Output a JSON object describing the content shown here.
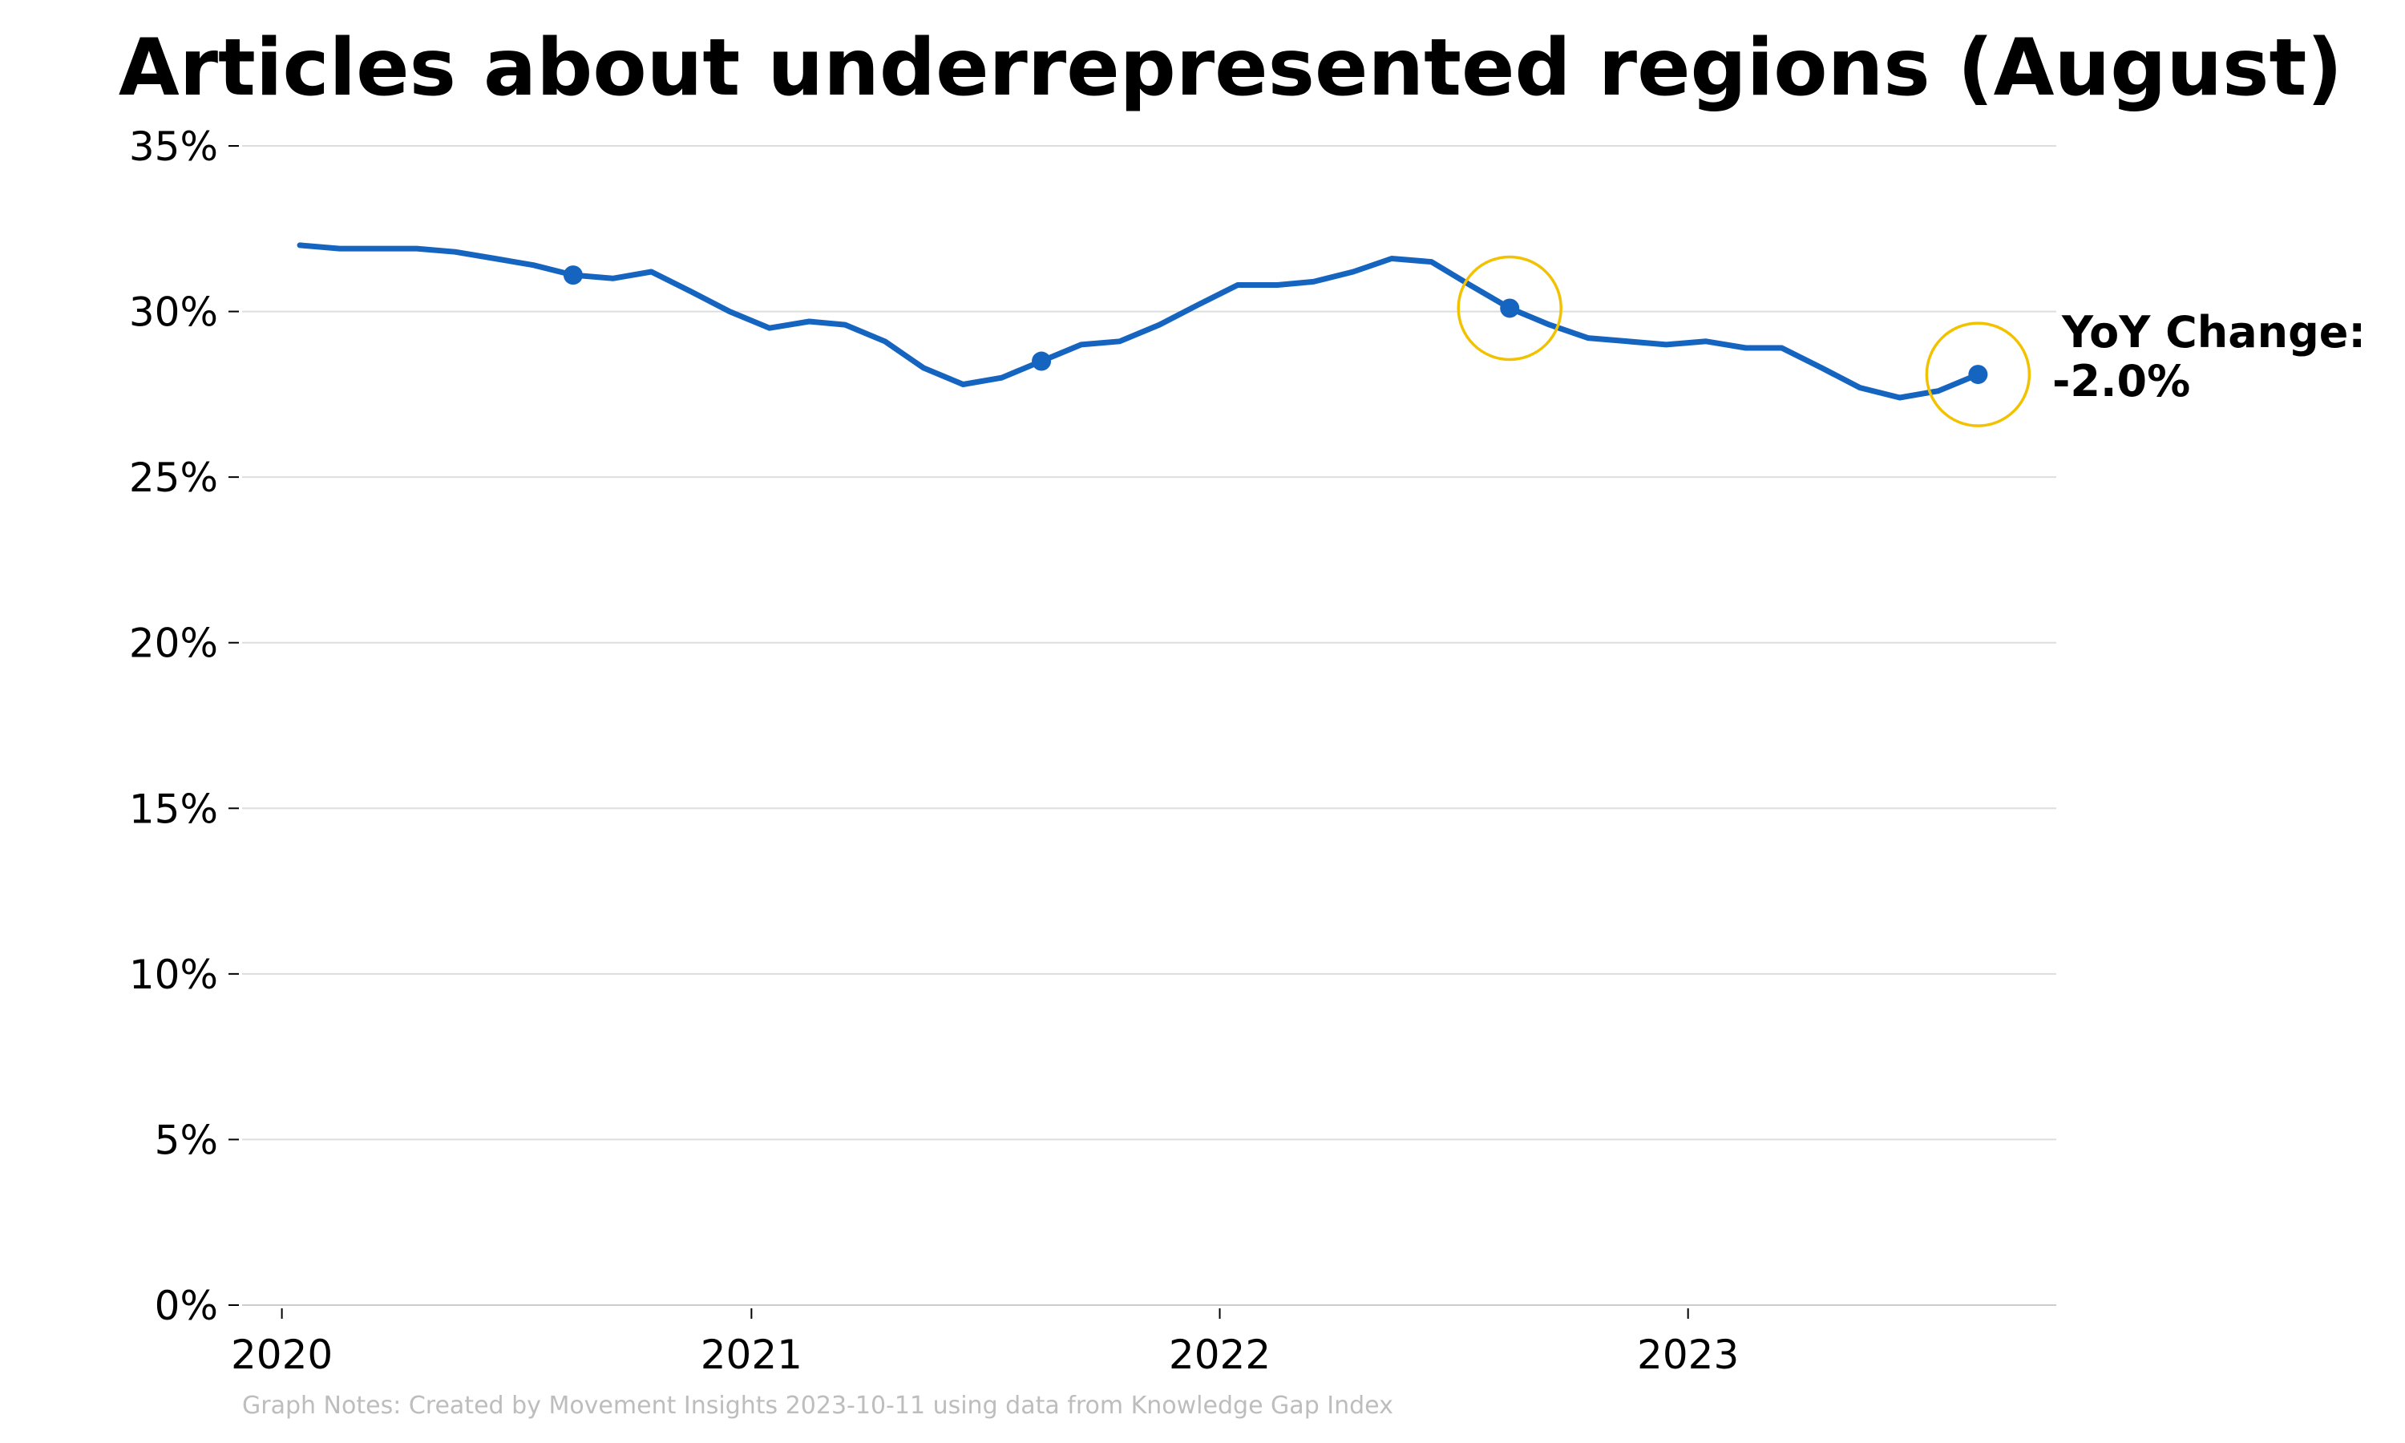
{
  "title": "Articles about underrepresented regions (August)",
  "note": "Graph Notes: Created by Movement Insights 2023-10-11 using data from Knowledge Gap Index",
  "annotation": {
    "line1": "YoY Change:",
    "line2": "-2.0%"
  },
  "colors": {
    "line": "#1565c0",
    "highlight": "#f2c200",
    "grid": "#dddddd",
    "axis": "#cccccc",
    "note": "#bdbdbd"
  },
  "chart_data": {
    "type": "line",
    "title": "Articles about underrepresented regions (August)",
    "xlabel": "",
    "ylabel": "",
    "ylim": [
      0,
      0.35
    ],
    "xlim": [
      "2019-12-01",
      "2023-10-15"
    ],
    "grid": true,
    "legend": "none",
    "y_ticks": [
      0,
      0.05,
      0.1,
      0.15,
      0.2,
      0.25,
      0.3,
      0.35
    ],
    "y_tick_labels": [
      "0%",
      "5%",
      "10%",
      "15%",
      "20%",
      "25%",
      "30%",
      "35%"
    ],
    "x_ticks": [
      "2020-01-01",
      "2021-01-01",
      "2022-01-01",
      "2023-01-01"
    ],
    "x_tick_labels": [
      "2020",
      "2021",
      "2022",
      "2023"
    ],
    "series": [
      {
        "x": [
          "2020-01",
          "2020-02",
          "2020-03",
          "2020-04",
          "2020-05",
          "2020-06",
          "2020-07",
          "2020-08",
          "2020-09",
          "2020-10",
          "2020-11",
          "2020-12",
          "2021-01",
          "2021-02",
          "2021-03",
          "2021-04",
          "2021-05",
          "2021-06",
          "2021-07",
          "2021-08",
          "2021-09",
          "2021-10",
          "2021-11",
          "2021-12",
          "2022-01",
          "2022-02",
          "2022-03",
          "2022-04",
          "2022-05",
          "2022-06",
          "2022-07",
          "2022-08",
          "2022-09",
          "2022-10",
          "2022-11",
          "2022-12",
          "2023-01",
          "2023-02",
          "2023-03",
          "2023-04",
          "2023-05",
          "2023-06",
          "2023-07",
          "2023-08"
        ],
        "values": [
          0.32,
          0.319,
          0.319,
          0.319,
          0.318,
          0.316,
          0.314,
          0.311,
          0.31,
          0.312,
          0.306,
          0.3,
          0.295,
          0.297,
          0.296,
          0.291,
          0.283,
          0.278,
          0.28,
          0.285,
          0.29,
          0.291,
          0.296,
          0.302,
          0.308,
          0.308,
          0.309,
          0.312,
          0.316,
          0.315,
          0.308,
          0.301,
          0.296,
          0.292,
          0.291,
          0.29,
          0.291,
          0.289,
          0.289,
          0.283,
          0.277,
          0.274,
          0.276,
          0.281
        ]
      }
    ],
    "highlighted_points": [
      {
        "x": "2020-08",
        "y": 0.311,
        "circled": false
      },
      {
        "x": "2021-08",
        "y": 0.285,
        "circled": false
      },
      {
        "x": "2022-08",
        "y": 0.301,
        "circled": true
      },
      {
        "x": "2023-08",
        "y": 0.281,
        "circled": true
      }
    ]
  }
}
